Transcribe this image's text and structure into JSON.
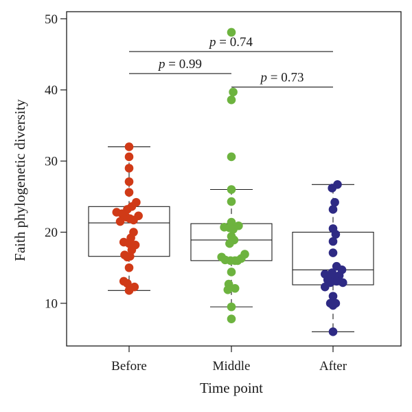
{
  "chart_data": {
    "type": "box+strip",
    "xlabel": "Time point",
    "ylabel": "Faith phylogenetic diversity",
    "categories": [
      "Before",
      "Middle",
      "After"
    ],
    "ylim": [
      4,
      51
    ],
    "yticks": [
      10,
      20,
      30,
      40,
      50
    ],
    "grid": false,
    "legend": "none",
    "boxes": [
      {
        "name": "Before",
        "min": 11.8,
        "q1": 16.6,
        "median": 21.3,
        "q3": 23.6,
        "max": 32.0,
        "color": "#d03a17"
      },
      {
        "name": "Middle",
        "min": 9.5,
        "q1": 16.0,
        "median": 18.9,
        "q3": 21.2,
        "max": 26.0,
        "color": "#6db33f"
      },
      {
        "name": "After",
        "min": 6.0,
        "q1": 12.6,
        "median": 14.7,
        "q3": 20.0,
        "max": 26.7,
        "color": "#2e2a84"
      }
    ],
    "points": [
      {
        "group": "Before",
        "values": [
          32.0,
          30.6,
          29.0,
          27.1,
          25.6,
          24.2,
          23.6,
          23.2,
          22.8,
          22.6,
          22.3,
          22.1,
          21.9,
          21.7,
          21.5,
          20.0,
          19.2,
          18.6,
          18.4,
          18.2,
          17.5,
          16.8,
          16.6,
          16.5,
          15.0,
          13.1,
          12.8,
          12.3,
          11.8
        ],
        "offsets": [
          0,
          0,
          0,
          0,
          0,
          1.6,
          0.6,
          -0.4,
          -2.8,
          -1.6,
          2.1,
          -0.6,
          0.2,
          1.0,
          -2.0,
          1.0,
          0.4,
          -1.2,
          0.0,
          1.4,
          0.6,
          -1.0,
          0.2,
          -0.4,
          0.0,
          -1.2,
          -0.4,
          1.2,
          0.0
        ]
      },
      {
        "group": "Middle",
        "values": [
          48.1,
          39.7,
          38.6,
          30.6,
          26.0,
          24.3,
          21.4,
          20.9,
          20.7,
          20.6,
          20.4,
          19.4,
          18.9,
          18.4,
          16.9,
          16.5,
          16.3,
          16.1,
          16.0,
          16.0,
          16.0,
          14.4,
          12.7,
          12.1,
          11.9,
          9.5,
          7.8
        ],
        "offsets": [
          0,
          0.4,
          0,
          0,
          0,
          0,
          0,
          1.6,
          -1.6,
          -0.4,
          0.4,
          0,
          0.6,
          -0.4,
          3.0,
          -2.2,
          2.2,
          -1.4,
          -0.2,
          0.8,
          1.4,
          0,
          -0.6,
          0.8,
          -0.8,
          0,
          0
        ]
      },
      {
        "group": "After",
        "values": [
          26.7,
          26.2,
          24.2,
          23.2,
          20.5,
          19.7,
          18.7,
          17.1,
          15.2,
          14.7,
          14.3,
          14.1,
          13.9,
          13.6,
          13.3,
          13.1,
          12.9,
          12.9,
          12.3,
          11.0,
          10.0,
          10.0,
          9.7,
          6.0
        ],
        "offsets": [
          1.0,
          -0.2,
          0.4,
          0,
          0,
          0.6,
          0,
          0,
          0.8,
          2.0,
          -0.2,
          -1.8,
          1.4,
          0.4,
          -1.2,
          0.8,
          -0.6,
          2.2,
          -1.8,
          0,
          0.6,
          -0.6,
          0,
          0
        ]
      }
    ],
    "comparisons": [
      {
        "from": "Before",
        "to": "After",
        "y": 45.4,
        "p": "0.74"
      },
      {
        "from": "Before",
        "to": "Middle",
        "y": 42.3,
        "p": "0.99"
      },
      {
        "from": "Middle",
        "to": "After",
        "y": 40.4,
        "p": "0.73"
      }
    ],
    "p_symbol": "p",
    "p_equals": " = "
  }
}
